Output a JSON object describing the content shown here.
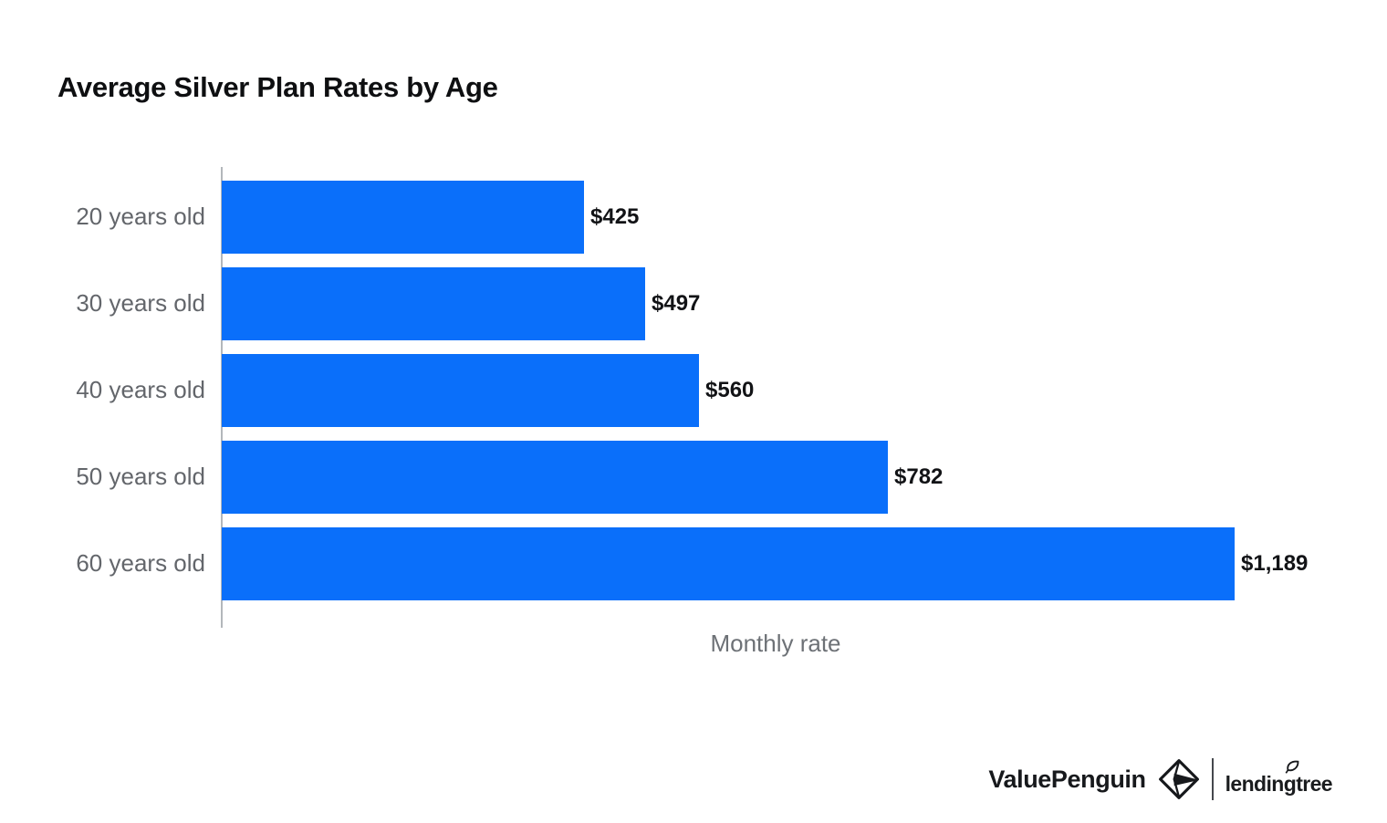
{
  "chart_data": {
    "type": "bar",
    "orientation": "horizontal",
    "title": "Average Silver Plan Rates by Age",
    "categories": [
      "20 years old",
      "30 years old",
      "40 years old",
      "50 years old",
      "60 years old"
    ],
    "values": [
      425,
      497,
      560,
      782,
      1189
    ],
    "value_labels": [
      "$425",
      "$497",
      "$560",
      "$782",
      "$1,189"
    ],
    "xlabel": "Monthly rate",
    "ylabel": "",
    "xlim": [
      0,
      1270
    ],
    "grid": false,
    "legend": "none",
    "data_labels": "outside-end"
  },
  "colors": {
    "bar": "#0a6ffa",
    "title": "#0e0f11",
    "category_label": "#63666b",
    "value_label": "#121316",
    "axis_line": "#b3b7bb",
    "xlabel": "#6d7176",
    "brand_text": "#17191c"
  },
  "footer": {
    "brand_primary": "ValuePenguin",
    "brand_secondary": "lendingtree",
    "penguin_icon": "origami-penguin-icon",
    "leaf_icon": "leaf-icon",
    "divider": "vertical-rule"
  }
}
